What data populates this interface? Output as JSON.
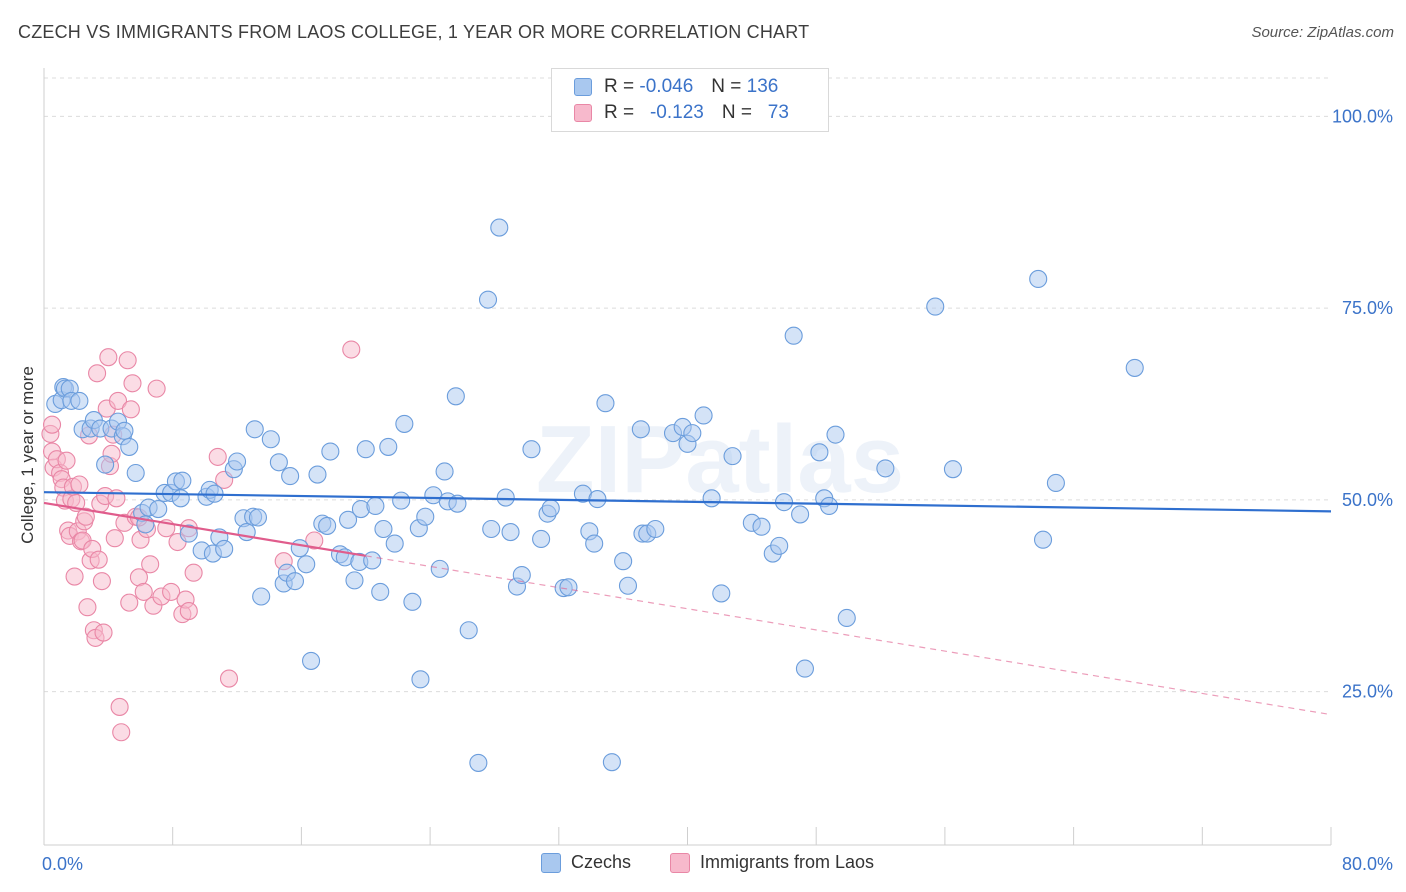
{
  "title": "CZECH VS IMMIGRANTS FROM LAOS COLLEGE, 1 YEAR OR MORE CORRELATION CHART",
  "source": "Source: ZipAtlas.com",
  "watermark": "ZIPatlas",
  "legend": {
    "rows": [
      {
        "r_label": "R =",
        "r_value": "-0.046",
        "n_label": "N =",
        "n_value": "136"
      },
      {
        "r_label": "R =",
        "r_value": "-0.123",
        "n_label": "N =",
        "n_value": "73"
      }
    ]
  },
  "colors": {
    "czechs_fill": "#a9c8ef",
    "czechs_stroke": "#6b9ddc",
    "czechs_line": "#2f6fcf",
    "laos_fill": "#f7b9cc",
    "laos_stroke": "#e987a6",
    "laos_line": "#e05c8c",
    "axis_text": "#3b73c9",
    "grid": "#dcdcdc"
  },
  "chart_data": {
    "type": "scatter",
    "title": "CZECH VS IMMIGRANTS FROM LAOS COLLEGE, 1 YEAR OR MORE CORRELATION CHART",
    "xlabel": "",
    "ylabel": "College, 1 year or more",
    "xlim": [
      0,
      80
    ],
    "ylim": [
      5,
      105
    ],
    "x_tick_labels": [
      "0.0%",
      "80.0%"
    ],
    "y_tick_labels": [
      "100.0%",
      "75.0%",
      "50.0%",
      "25.0%"
    ],
    "y_ticks": [
      100,
      75,
      50,
      25
    ],
    "grid": true,
    "legend_position": "bottom",
    "series": [
      {
        "name": "Czechs",
        "r": -0.046,
        "n": 136,
        "trend": {
          "x": [
            0,
            80
          ],
          "y": [
            51.0,
            48.5
          ],
          "dashed_from": null
        },
        "points": [
          [
            0.7,
            62.5
          ],
          [
            1.1,
            63.0
          ],
          [
            1.2,
            64.7
          ],
          [
            1.3,
            64.5
          ],
          [
            1.6,
            64.5
          ],
          [
            1.7,
            62.9
          ],
          [
            2.2,
            62.9
          ],
          [
            2.4,
            59.2
          ],
          [
            2.9,
            59.3
          ],
          [
            3.1,
            60.4
          ],
          [
            3.5,
            59.3
          ],
          [
            3.8,
            54.6
          ],
          [
            4.2,
            59.3
          ],
          [
            4.6,
            60.2
          ],
          [
            4.9,
            58.3
          ],
          [
            5.0,
            59.0
          ],
          [
            5.3,
            56.9
          ],
          [
            5.7,
            53.5
          ],
          [
            6.1,
            48.3
          ],
          [
            6.3,
            46.8
          ],
          [
            6.5,
            49.0
          ],
          [
            7.1,
            48.8
          ],
          [
            7.5,
            50.9
          ],
          [
            7.9,
            50.9
          ],
          [
            8.2,
            52.4
          ],
          [
            8.6,
            52.5
          ],
          [
            8.5,
            50.2
          ],
          [
            9.0,
            45.6
          ],
          [
            9.8,
            43.4
          ],
          [
            10.1,
            50.4
          ],
          [
            10.3,
            51.3
          ],
          [
            10.5,
            43.0
          ],
          [
            10.6,
            50.8
          ],
          [
            10.9,
            45.1
          ],
          [
            11.2,
            43.6
          ],
          [
            11.8,
            54.0
          ],
          [
            12.0,
            55.0
          ],
          [
            12.4,
            47.6
          ],
          [
            12.6,
            45.8
          ],
          [
            13.0,
            47.8
          ],
          [
            13.1,
            59.2
          ],
          [
            13.3,
            47.7
          ],
          [
            13.5,
            37.4
          ],
          [
            14.1,
            57.9
          ],
          [
            14.6,
            54.9
          ],
          [
            14.9,
            39.1
          ],
          [
            15.1,
            40.5
          ],
          [
            15.3,
            53.1
          ],
          [
            15.6,
            39.4
          ],
          [
            15.9,
            43.7
          ],
          [
            16.3,
            41.6
          ],
          [
            16.6,
            29.0
          ],
          [
            17.0,
            53.3
          ],
          [
            17.3,
            46.9
          ],
          [
            17.6,
            46.6
          ],
          [
            17.8,
            56.3
          ],
          [
            18.4,
            42.9
          ],
          [
            18.7,
            42.5
          ],
          [
            18.9,
            47.4
          ],
          [
            19.3,
            39.5
          ],
          [
            19.6,
            41.9
          ],
          [
            19.7,
            48.8
          ],
          [
            20.0,
            56.6
          ],
          [
            20.4,
            42.1
          ],
          [
            20.6,
            49.2
          ],
          [
            21.1,
            46.2
          ],
          [
            21.4,
            56.9
          ],
          [
            21.8,
            44.3
          ],
          [
            22.2,
            49.9
          ],
          [
            22.4,
            59.9
          ],
          [
            22.9,
            36.7
          ],
          [
            23.4,
            26.6
          ],
          [
            23.3,
            46.3
          ],
          [
            23.7,
            47.8
          ],
          [
            24.2,
            50.6
          ],
          [
            24.6,
            41.0
          ],
          [
            24.9,
            53.7
          ],
          [
            25.1,
            49.8
          ],
          [
            25.7,
            49.5
          ],
          [
            25.6,
            63.5
          ],
          [
            26.4,
            33.0
          ],
          [
            27.0,
            15.7
          ],
          [
            27.6,
            76.1
          ],
          [
            27.8,
            46.2
          ],
          [
            28.3,
            85.5
          ],
          [
            28.7,
            50.3
          ],
          [
            29.0,
            45.8
          ],
          [
            29.4,
            38.7
          ],
          [
            29.7,
            40.2
          ],
          [
            30.3,
            56.6
          ],
          [
            30.9,
            44.9
          ],
          [
            31.3,
            48.2
          ],
          [
            31.5,
            48.9
          ],
          [
            32.3,
            38.5
          ],
          [
            32.6,
            38.6
          ],
          [
            33.5,
            50.8
          ],
          [
            33.9,
            45.9
          ],
          [
            34.2,
            44.3
          ],
          [
            34.4,
            50.1
          ],
          [
            34.9,
            62.6
          ],
          [
            35.3,
            15.8
          ],
          [
            36.0,
            42.0
          ],
          [
            36.3,
            38.8
          ],
          [
            37.1,
            59.2
          ],
          [
            37.2,
            45.6
          ],
          [
            37.5,
            45.6
          ],
          [
            38.0,
            46.2
          ],
          [
            39.1,
            58.7
          ],
          [
            39.7,
            59.5
          ],
          [
            40.0,
            57.3
          ],
          [
            40.3,
            58.7
          ],
          [
            41.0,
            61.0
          ],
          [
            41.5,
            50.2
          ],
          [
            42.1,
            37.8
          ],
          [
            42.8,
            55.7
          ],
          [
            44.0,
            47.0
          ],
          [
            44.6,
            46.5
          ],
          [
            45.3,
            43.0
          ],
          [
            45.7,
            44.0
          ],
          [
            46.0,
            49.7
          ],
          [
            46.6,
            71.4
          ],
          [
            47.0,
            48.1
          ],
          [
            47.3,
            28.0
          ],
          [
            48.2,
            56.2
          ],
          [
            48.5,
            50.2
          ],
          [
            48.8,
            49.2
          ],
          [
            49.9,
            34.6
          ],
          [
            52.3,
            54.1
          ],
          [
            55.4,
            75.2
          ],
          [
            56.5,
            54.0
          ],
          [
            61.8,
            78.8
          ],
          [
            62.1,
            44.8
          ],
          [
            62.9,
            52.2
          ],
          [
            67.8,
            67.2
          ],
          [
            49.2,
            58.5
          ],
          [
            20.9,
            38.0
          ]
        ]
      },
      {
        "name": "Immigrants from Laos",
        "r": -0.123,
        "n": 73,
        "trend": {
          "x": [
            0,
            80
          ],
          "y": [
            49.6,
            22.0
          ],
          "dashed_from": 20
        },
        "points": [
          [
            0.4,
            58.6
          ],
          [
            0.5,
            59.8
          ],
          [
            0.5,
            56.3
          ],
          [
            0.6,
            54.2
          ],
          [
            0.8,
            55.3
          ],
          [
            1.0,
            53.5
          ],
          [
            1.1,
            52.7
          ],
          [
            1.2,
            51.6
          ],
          [
            1.3,
            49.9
          ],
          [
            1.4,
            55.1
          ],
          [
            1.5,
            46.0
          ],
          [
            1.6,
            45.3
          ],
          [
            1.7,
            50.1
          ],
          [
            1.8,
            51.7
          ],
          [
            1.9,
            40.0
          ],
          [
            2.0,
            49.6
          ],
          [
            2.1,
            45.9
          ],
          [
            2.2,
            52.0
          ],
          [
            2.3,
            44.6
          ],
          [
            2.4,
            44.7
          ],
          [
            2.5,
            47.2
          ],
          [
            2.6,
            47.8
          ],
          [
            2.7,
            36.0
          ],
          [
            2.8,
            58.4
          ],
          [
            2.9,
            42.1
          ],
          [
            3.0,
            43.6
          ],
          [
            3.1,
            33.0
          ],
          [
            3.2,
            32.0
          ],
          [
            3.3,
            66.5
          ],
          [
            3.4,
            42.2
          ],
          [
            3.5,
            49.5
          ],
          [
            3.6,
            39.4
          ],
          [
            3.7,
            32.7
          ],
          [
            3.8,
            50.5
          ],
          [
            3.9,
            61.9
          ],
          [
            4.0,
            68.6
          ],
          [
            4.1,
            54.4
          ],
          [
            4.2,
            56.0
          ],
          [
            4.3,
            58.5
          ],
          [
            4.4,
            45.0
          ],
          [
            4.5,
            50.2
          ],
          [
            4.6,
            62.9
          ],
          [
            4.7,
            23.0
          ],
          [
            4.8,
            19.7
          ],
          [
            5.0,
            47.0
          ],
          [
            5.2,
            68.2
          ],
          [
            5.3,
            36.6
          ],
          [
            5.4,
            61.8
          ],
          [
            5.5,
            65.2
          ],
          [
            5.7,
            47.8
          ],
          [
            5.9,
            39.9
          ],
          [
            6.0,
            44.8
          ],
          [
            6.2,
            38.0
          ],
          [
            6.4,
            46.2
          ],
          [
            6.6,
            41.6
          ],
          [
            6.8,
            36.2
          ],
          [
            7.0,
            64.5
          ],
          [
            7.3,
            37.4
          ],
          [
            7.6,
            46.3
          ],
          [
            7.9,
            38.0
          ],
          [
            8.3,
            44.5
          ],
          [
            8.6,
            35.1
          ],
          [
            8.8,
            37.0
          ],
          [
            9.0,
            35.5
          ],
          [
            9.3,
            40.5
          ],
          [
            10.8,
            55.6
          ],
          [
            11.2,
            52.6
          ],
          [
            11.5,
            26.7
          ],
          [
            14.9,
            42.0
          ],
          [
            16.8,
            44.7
          ],
          [
            19.1,
            69.6
          ],
          [
            5.9,
            47.7
          ],
          [
            9.0,
            46.3
          ]
        ]
      }
    ]
  },
  "bottom_legend": {
    "czechs_label": "Czechs",
    "laos_label": "Immigrants from Laos"
  }
}
